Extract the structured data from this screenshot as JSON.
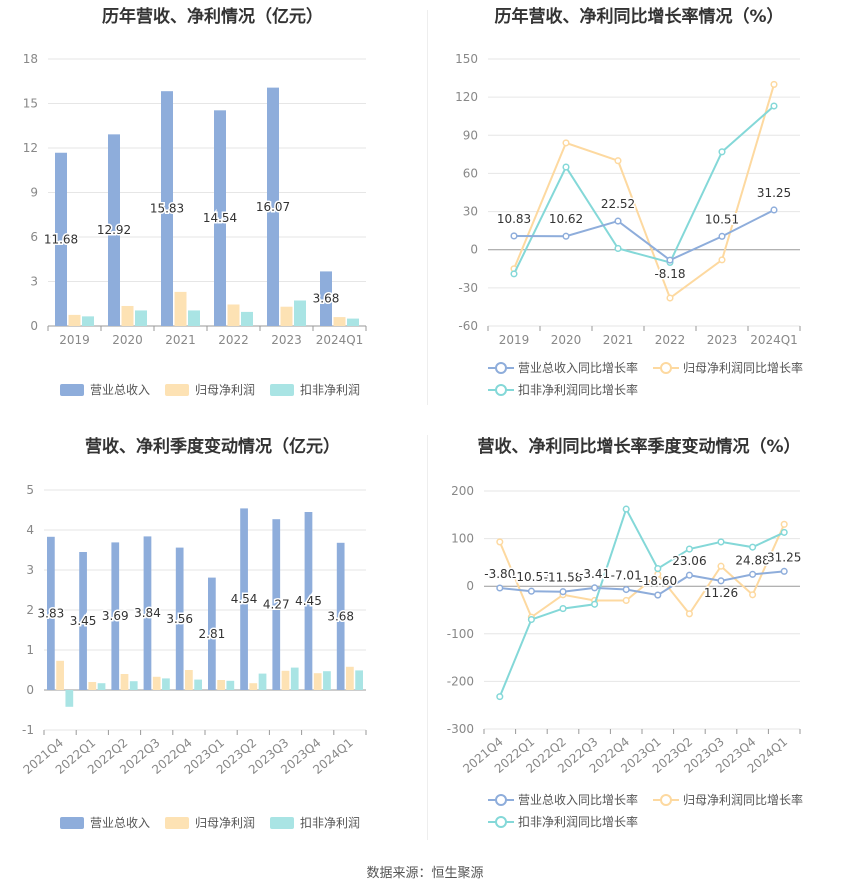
{
  "source_label": "数据来源：恒生聚源",
  "colors": {
    "revenue": "#8eaddb",
    "net_profit": "#fde2b4",
    "deducted_profit": "#a9e4e4",
    "revenue_line": "#8eaddb",
    "net_profit_line": "#fdd9a0",
    "deducted_line": "#84d8d8"
  },
  "chart_data": [
    {
      "type": "bar",
      "title": "历年营收、净利情况（亿元）",
      "categories": [
        "2019",
        "2020",
        "2021",
        "2022",
        "2023",
        "2024Q1"
      ],
      "series": [
        {
          "name": "营业总收入",
          "values": [
            11.68,
            12.92,
            15.83,
            14.54,
            16.07,
            3.68
          ]
        },
        {
          "name": "归母净利润",
          "values": [
            0.75,
            1.35,
            2.3,
            1.45,
            1.3,
            0.6
          ]
        },
        {
          "name": "扣非净利润",
          "values": [
            0.65,
            1.05,
            1.05,
            0.95,
            1.72,
            0.5
          ]
        }
      ],
      "data_labels": [
        "11.68",
        "12.92",
        "15.83",
        "14.54",
        "16.07",
        "3.68"
      ],
      "yticks": [
        "0",
        "3",
        "6",
        "9",
        "12",
        "15",
        "18"
      ],
      "ylim": [
        0,
        18
      ],
      "legend": "bottom"
    },
    {
      "type": "line",
      "title": "历年营收、净利同比增长率情况（%）",
      "categories": [
        "2019",
        "2020",
        "2021",
        "2022",
        "2023",
        "2024Q1"
      ],
      "series": [
        {
          "name": "营业总收入同比增长率",
          "values": [
            10.83,
            10.62,
            22.52,
            -8.18,
            10.51,
            31.25
          ]
        },
        {
          "name": "归母净利润同比增长率",
          "values": [
            -15,
            84,
            70,
            -38,
            -8,
            130
          ]
        },
        {
          "name": "扣非净利润同比增长率",
          "values": [
            -19,
            65,
            1,
            -10,
            77,
            113
          ]
        }
      ],
      "data_labels": [
        "10.83",
        "10.62",
        "22.52",
        "-8.18",
        "10.51",
        "31.25"
      ],
      "yticks": [
        "-60",
        "-30",
        "0",
        "30",
        "60",
        "90",
        "120",
        "150"
      ],
      "ylim": [
        -60,
        150
      ],
      "legend": "bottom"
    },
    {
      "type": "bar",
      "title": "营收、净利季度变动情况（亿元）",
      "categories": [
        "2021Q4",
        "2022Q1",
        "2022Q2",
        "2022Q3",
        "2022Q4",
        "2023Q1",
        "2023Q2",
        "2023Q3",
        "2023Q4",
        "2024Q1"
      ],
      "series": [
        {
          "name": "营业总收入",
          "values": [
            3.83,
            3.45,
            3.69,
            3.84,
            3.56,
            2.81,
            4.54,
            4.27,
            4.45,
            3.68
          ]
        },
        {
          "name": "归母净利润",
          "values": [
            0.73,
            0.2,
            0.4,
            0.33,
            0.5,
            0.25,
            0.17,
            0.48,
            0.42,
            0.58
          ]
        },
        {
          "name": "扣非净利润",
          "values": [
            -0.42,
            0.17,
            0.22,
            0.29,
            0.26,
            0.23,
            0.41,
            0.56,
            0.47,
            0.49
          ]
        }
      ],
      "data_labels": [
        "3.83",
        "3.45",
        "3.69",
        "3.84",
        "3.56",
        "2.81",
        "4.54",
        "4.27",
        "4.45",
        "3.68"
      ],
      "yticks": [
        "-1",
        "0",
        "1",
        "2",
        "3",
        "4",
        "5"
      ],
      "ylim": [
        -1,
        5
      ],
      "legend": "bottom"
    },
    {
      "type": "line",
      "title": "营收、净利同比增长率季度变动情况（%）",
      "categories": [
        "2021Q4",
        "2022Q1",
        "2022Q2",
        "2022Q3",
        "2022Q4",
        "2023Q1",
        "2023Q2",
        "2023Q3",
        "2023Q4",
        "2024Q1"
      ],
      "series": [
        {
          "name": "营业总收入同比增长率",
          "values": [
            -3.8,
            -10.57,
            -11.58,
            -3.41,
            -7.01,
            -18.6,
            23.06,
            11.26,
            24.88,
            31.25
          ]
        },
        {
          "name": "归母净利润同比增长率",
          "values": [
            93,
            -65,
            -18,
            -30,
            -30,
            25,
            -58,
            42,
            -18,
            130
          ]
        },
        {
          "name": "扣非净利润同比增长率",
          "values": [
            -232,
            -70,
            -47,
            -38,
            162,
            37,
            78,
            93,
            82,
            113
          ]
        }
      ],
      "data_labels": [
        "-3.80",
        "-10.57",
        "-11.58",
        "-3.41",
        "-7.01",
        "-18.60",
        "23.06",
        "11.26",
        "24.88",
        "31.25"
      ],
      "yticks": [
        "-300",
        "-200",
        "-100",
        "0",
        "100",
        "200"
      ],
      "ylim": [
        -300,
        200
      ],
      "legend": "bottom"
    }
  ]
}
